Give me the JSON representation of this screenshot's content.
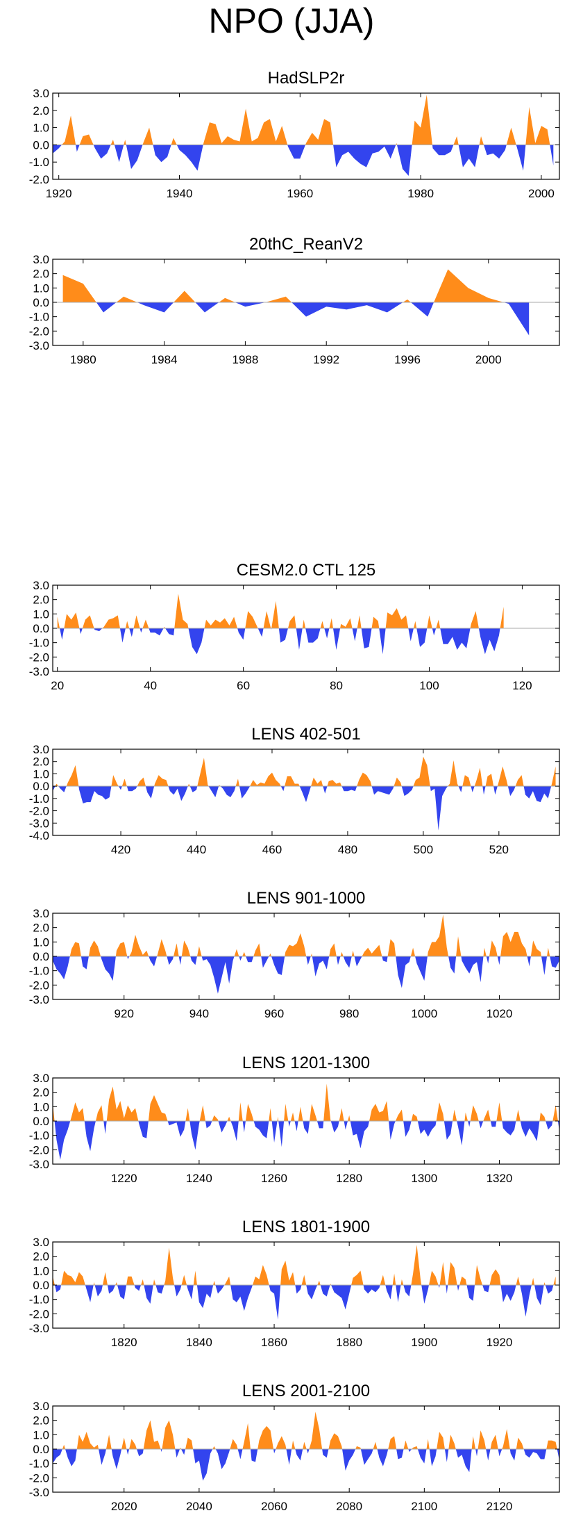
{
  "title": "NPO (JJA)",
  "colors": {
    "positive": "#ff8c1a",
    "negative": "#3344ee",
    "axis": "#000000",
    "zero_line": "#aaaaaa"
  },
  "chart_data": [
    {
      "type": "area",
      "title": "HadSLP2r",
      "xlim": [
        1919,
        2003
      ],
      "ylim": [
        -2.0,
        3.0
      ],
      "yticks": [
        "3.0",
        "2.0",
        "1.0",
        "0.0",
        "-1.0",
        "-2.0"
      ],
      "xticks": [
        1920,
        1940,
        1960,
        1980,
        2000
      ],
      "x": [
        1919,
        1920,
        1921,
        1922,
        1923,
        1924,
        1925,
        1926,
        1927,
        1928,
        1929,
        1930,
        1931,
        1932,
        1933,
        1934,
        1935,
        1936,
        1937,
        1938,
        1939,
        1940,
        1941,
        1942,
        1943,
        1944,
        1945,
        1946,
        1947,
        1948,
        1949,
        1950,
        1951,
        1952,
        1953,
        1954,
        1955,
        1956,
        1957,
        1958,
        1959,
        1960,
        1961,
        1962,
        1963,
        1964,
        1965,
        1966,
        1967,
        1968,
        1969,
        1970,
        1971,
        1972,
        1973,
        1974,
        1975,
        1976,
        1977,
        1978,
        1979,
        1980,
        1981,
        1982,
        1983,
        1984,
        1985,
        1986,
        1987,
        1988,
        1989,
        1990,
        1991,
        1992,
        1993,
        1994,
        1995,
        1996,
        1997,
        1998,
        1999,
        2000,
        2001,
        2002
      ],
      "values": [
        -0.5,
        -0.2,
        0.2,
        1.7,
        -0.4,
        0.5,
        0.6,
        -0.2,
        -0.8,
        -0.5,
        0.3,
        -1.0,
        0.3,
        -1.4,
        -0.9,
        0.1,
        1.0,
        -0.6,
        -1.0,
        -0.7,
        0.4,
        -0.3,
        -0.6,
        -1.0,
        -1.5,
        0.1,
        1.3,
        1.2,
        0.1,
        0.5,
        0.3,
        0.2,
        2.1,
        0.2,
        0.4,
        1.3,
        1.5,
        0.2,
        1.1,
        -0.1,
        -0.8,
        -0.8,
        0.1,
        0.7,
        0.3,
        1.5,
        1.3,
        -1.3,
        -0.6,
        -0.4,
        -0.8,
        -1.1,
        -1.3,
        -0.5,
        -0.4,
        -0.1,
        -0.8,
        0.1,
        -1.4,
        -1.8,
        1.4,
        1.0,
        2.9,
        -0.2,
        -0.6,
        -0.6,
        -0.4,
        0.5,
        -1.3,
        -0.8,
        -1.3,
        0.5,
        -0.6,
        -0.5,
        -0.8,
        -0.3,
        1.0,
        -0.2,
        -1.5,
        2.2,
        0.1,
        1.1,
        0.9,
        -1.2
      ]
    },
    {
      "type": "area",
      "title": "20thC_ReanV2",
      "xlim": [
        1978.5,
        2003.5
      ],
      "ylim": [
        -3.0,
        3.0
      ],
      "yticks": [
        "3.0",
        "2.0",
        "1.0",
        "0.0",
        "-1.0",
        "-2.0",
        "-3.0"
      ],
      "xticks": [
        1980,
        1984,
        1988,
        1992,
        1996,
        2000
      ],
      "x": [
        1979,
        1980,
        1981,
        1982,
        1983,
        1984,
        1985,
        1986,
        1987,
        1988,
        1989,
        1990,
        1991,
        1992,
        1993,
        1994,
        1995,
        1996,
        1997,
        1998,
        1999,
        2000,
        2001,
        2002
      ],
      "values": [
        1.9,
        1.3,
        -0.7,
        0.4,
        -0.2,
        -0.7,
        0.8,
        -0.7,
        0.3,
        -0.3,
        0.0,
        0.4,
        -1.0,
        -0.3,
        -0.5,
        -0.2,
        -0.7,
        0.2,
        -1.0,
        2.3,
        1.0,
        0.3,
        -0.1,
        -2.3
      ]
    },
    {
      "type": "area",
      "title": "CESM2.0 CTL 125",
      "xlim": [
        19,
        128
      ],
      "ylim": [
        -3.0,
        3.0
      ],
      "yticks": [
        "3.0",
        "2.0",
        "1.0",
        "0.0",
        "-1.0",
        "-2.0",
        "-3.0"
      ],
      "xticks": [
        20,
        40,
        60,
        80,
        100,
        120
      ],
      "x0": 20,
      "dx": 1,
      "values": [
        0.8,
        -0.8,
        1.0,
        0.6,
        1.1,
        -0.4,
        0.6,
        0.9,
        -0.1,
        -0.2,
        0.1,
        0.6,
        0.7,
        0.9,
        -1.0,
        0.5,
        -0.6,
        0.9,
        -0.3,
        0.6,
        -0.3,
        -0.3,
        -0.5,
        0.1,
        -0.4,
        -0.5,
        2.4,
        0.6,
        0.3,
        -1.3,
        -1.8,
        -1.0,
        0.6,
        0.2,
        0.6,
        0.4,
        0.7,
        0.2,
        0.8,
        -0.3,
        -0.8,
        1.2,
        0.8,
        0.1,
        -0.6,
        1.2,
        -0.1,
        1.9,
        -1.0,
        -0.8,
        0.5,
        0.9,
        -1.5,
        0.6,
        -1.0,
        -1.0,
        -0.7,
        0.5,
        -0.7,
        0.7,
        -1.5,
        0.3,
        0.1,
        0.7,
        -0.9,
        0.9,
        -1.4,
        -1.3,
        0.8,
        0.5,
        -1.8,
        1.1,
        0.9,
        1.4,
        0.6,
        0.9,
        -0.9,
        0.5,
        -1.3,
        -1.0,
        0.9,
        -0.5,
        0.6,
        -1.1,
        -1.1,
        -0.6,
        -1.5,
        -1.0,
        -1.4,
        0.3,
        1.2,
        -0.6,
        -1.8,
        -0.8,
        -1.6,
        -0.5,
        1.5
      ]
    },
    {
      "type": "area",
      "title": "LENS 402-501",
      "xlim": [
        402,
        536
      ],
      "ylim": [
        -4.0,
        3.0
      ],
      "yticks": [
        "3.0",
        "2.0",
        "1.0",
        "0.0",
        "-1.0",
        "-2.0",
        "-3.0",
        "-4.0"
      ],
      "xticks": [
        420,
        440,
        460,
        480,
        500,
        520
      ],
      "x0": 402,
      "dx": 1,
      "values": [
        -0.4,
        0.2,
        -0.2,
        -0.5,
        0.3,
        0.9,
        1.7,
        -0.3,
        -1.4,
        -1.3,
        -1.3,
        -0.4,
        -0.7,
        -0.8,
        -1.1,
        -0.9,
        0.9,
        0.2,
        -0.3,
        0.6,
        -0.4,
        -0.4,
        -0.2,
        0.4,
        0.7,
        -0.5,
        -1.0,
        0.2,
        0.9,
        0.6,
        0.5,
        -0.4,
        -0.7,
        -0.2,
        -1.2,
        -0.6,
        0.2,
        -0.5,
        -0.3,
        1.0,
        2.3,
        0.1,
        -0.4,
        -0.9,
        0.1,
        -0.2,
        -0.7,
        -0.9,
        -0.4,
        0.6,
        -1.0,
        -0.6,
        -0.1,
        0.5,
        0.1,
        0.3,
        0.2,
        0.8,
        1.1,
        0.5,
        0.2,
        -0.4,
        0.8,
        0.8,
        0.2,
        0.2,
        -0.5,
        -1.3,
        -0.3,
        0.7,
        0.2,
        0.5,
        -0.6,
        0.4,
        0.5,
        0.2,
        0.3,
        -0.4,
        -0.4,
        -0.3,
        -0.4,
        0.5,
        1.1,
        0.9,
        0.4,
        -0.7,
        -0.4,
        -0.5,
        -0.6,
        -0.7,
        -0.2,
        0.7,
        0.3,
        -0.8,
        -0.6,
        -0.3,
        0.5,
        0.7,
        2.4,
        1.7,
        -0.4,
        -0.2,
        -3.6,
        -0.8,
        -0.2,
        0.2,
        2.1,
        0.2,
        -0.5,
        0.9,
        0.7,
        -0.5,
        0.4,
        1.5,
        -0.7,
        0.8,
        1.0,
        -0.7,
        0.4,
        1.6,
        0.5,
        -0.8,
        -0.3,
        0.5,
        0.9,
        -0.7,
        -1.0,
        -0.4,
        -1.2,
        -1.3,
        -0.6,
        -1.0,
        0.2,
        1.6
      ]
    },
    {
      "type": "area",
      "title": "LENS 901-1000",
      "xlim": [
        901,
        1036
      ],
      "ylim": [
        -3.0,
        3.0
      ],
      "yticks": [
        "3.0",
        "2.0",
        "1.0",
        "0.0",
        "-1.0",
        "-2.0",
        "-3.0"
      ],
      "xticks": [
        920,
        940,
        960,
        980,
        1000,
        1020
      ],
      "x0": 901,
      "dx": 1,
      "values": [
        -0.3,
        -0.9,
        -1.2,
        -1.6,
        -0.7,
        0.5,
        1.0,
        0.9,
        -0.7,
        -0.9,
        0.6,
        1.1,
        0.7,
        -0.2,
        -0.9,
        -1.2,
        -1.7,
        0.4,
        0.9,
        1.0,
        -0.2,
        0.3,
        1.5,
        0.7,
        0.1,
        0.4,
        -0.3,
        -0.7,
        0.2,
        1.2,
        0.4,
        -0.6,
        -0.2,
        0.9,
        -0.6,
        1.1,
        0.6,
        -0.3,
        -0.6,
        0.7,
        -0.3,
        -0.2,
        -0.6,
        -1.5,
        -2.6,
        -1.5,
        -0.4,
        -1.9,
        -0.3,
        0.5,
        -0.3,
        0.3,
        -0.4,
        -0.4,
        0.4,
        0.9,
        -0.8,
        -0.3,
        0.2,
        -0.6,
        -1.2,
        -1.3,
        0.3,
        0.8,
        0.7,
        0.9,
        1.6,
        0.7,
        -0.6,
        0.2,
        -1.4,
        -0.5,
        -0.3,
        -0.9,
        0.5,
        0.9,
        -0.6,
        0.3,
        -0.4,
        -0.8,
        0.4,
        -0.7,
        -0.2,
        0.3,
        0.6,
        0.2,
        0.5,
        0.8,
        -0.3,
        -0.4,
        1.2,
        0.9,
        -1.3,
        -2.2,
        -0.6,
        -0.4,
        0.6,
        -0.5,
        -1.1,
        -1.7,
        0.3,
        1.0,
        1.0,
        1.4,
        2.9,
        0.6,
        -0.8,
        -1.2,
        1.4,
        -0.3,
        -0.8,
        -1.2,
        -0.6,
        -0.4,
        -1.8,
        0.6,
        -0.5,
        1.1,
        0.6,
        -0.6,
        1.4,
        1.7,
        1.0,
        1.7,
        1.7,
        0.9,
        0.5,
        -0.7,
        1.1,
        0.5,
        0.3,
        -1.3,
        0.6,
        -0.7,
        -0.8,
        -0.3
      ]
    },
    {
      "type": "area",
      "title": "LENS 1201-1300",
      "xlim": [
        1201,
        1336
      ],
      "ylim": [
        -3.0,
        3.0
      ],
      "yticks": [
        "3.0",
        "2.0",
        "1.0",
        "0.0",
        "-1.0",
        "-2.0",
        "-3.0"
      ],
      "xticks": [
        1220,
        1240,
        1260,
        1280,
        1300,
        1320
      ],
      "x0": 1201,
      "dx": 1,
      "values": [
        1.2,
        -1.3,
        -2.7,
        -1.3,
        -0.6,
        0.3,
        1.3,
        0.6,
        0.9,
        -1.1,
        -2.1,
        -0.5,
        0.6,
        1.1,
        -0.9,
        1.5,
        2.4,
        0.8,
        1.4,
        0.2,
        1.1,
        0.6,
        0.9,
        -0.2,
        -1.1,
        -1.2,
        1.2,
        1.8,
        1.2,
        0.6,
        0.5,
        -0.3,
        -0.2,
        -0.1,
        -1.1,
        -0.6,
        0.9,
        -0.9,
        -2.0,
        -0.2,
        1.1,
        -0.5,
        -0.3,
        0.4,
        0.1,
        -0.8,
        -0.3,
        0.3,
        -0.4,
        -1.4,
        1.3,
        -0.8,
        1.2,
        0.5,
        -0.4,
        -0.6,
        -1.0,
        -1.2,
        0.9,
        -1.5,
        0.3,
        -1.8,
        1.2,
        -0.4,
        0.6,
        -0.7,
        1.0,
        -0.5,
        -0.9,
        1.2,
        0.4,
        -0.5,
        -0.5,
        2.6,
        0.1,
        -0.8,
        -0.4,
        0.9,
        -0.6,
        0.4,
        -1.0,
        -0.9,
        -1.9,
        -0.7,
        -0.4,
        0.8,
        1.2,
        0.6,
        0.7,
        1.4,
        -1.3,
        -0.2,
        0.4,
        0.8,
        -1.1,
        -0.6,
        0.5,
        0.3,
        -0.9,
        -0.6,
        -1.1,
        -0.6,
        -0.3,
        1.3,
        0.5,
        -1.3,
        -0.9,
        0.8,
        -0.4,
        -1.7,
        0.6,
        -0.4,
        1.1,
        0.5,
        -0.5,
        0.2,
        0.8,
        -0.4,
        -0.4,
        1.3,
        -0.5,
        -0.8,
        -1.0,
        -0.6,
        0.8,
        -0.5,
        -1.1,
        -0.5,
        -0.9,
        -1.4,
        0.6,
        0.3,
        -0.6,
        -0.3,
        1.1,
        -0.7
      ]
    },
    {
      "type": "area",
      "title": "LENS 1801-1900",
      "xlim": [
        1801,
        1936
      ],
      "ylim": [
        -3.0,
        3.0
      ],
      "yticks": [
        "3.0",
        "2.0",
        "1.0",
        "0.0",
        "-1.0",
        "-2.0",
        "-3.0"
      ],
      "xticks": [
        1820,
        1840,
        1860,
        1880,
        1900,
        1920
      ],
      "x0": 1801,
      "dx": 1,
      "values": [
        0.6,
        -0.5,
        -0.3,
        1.0,
        0.7,
        0.6,
        0.2,
        0.9,
        0.6,
        -0.3,
        -1.2,
        0.2,
        -0.8,
        -0.4,
        0.9,
        -0.6,
        -0.4,
        0.2,
        -0.8,
        -1.0,
        0.6,
        0.6,
        -0.2,
        -0.4,
        0.4,
        -0.9,
        -1.3,
        0.4,
        -0.5,
        -0.6,
        0.3,
        2.6,
        0.5,
        -0.8,
        -0.3,
        0.7,
        -0.3,
        -1.0,
        1.0,
        -1.2,
        -1.6,
        -0.6,
        -0.9,
        0.3,
        -0.6,
        -0.3,
        0.1,
        0.6,
        -1.0,
        -1.2,
        -0.8,
        -1.8,
        -0.9,
        -0.2,
        0.6,
        0.4,
        1.4,
        0.7,
        -0.4,
        -0.6,
        -2.4,
        1.1,
        1.7,
        0.3,
        0.9,
        -0.6,
        -0.3,
        0.7,
        -0.6,
        -1.0,
        -0.3,
        0.3,
        -0.6,
        -0.8,
        0.1,
        -0.5,
        -0.7,
        -0.9,
        -1.7,
        -0.6,
        0.5,
        0.7,
        1.0,
        -0.3,
        -0.6,
        -0.3,
        -0.5,
        -0.2,
        0.7,
        -0.4,
        -1.0,
        0.8,
        -1.2,
        0.4,
        -0.5,
        -0.8,
        0.8,
        2.8,
        0.4,
        -1.3,
        -0.3,
        1.0,
        0.6,
        -0.2,
        1.6,
        -0.6,
        1.6,
        1.2,
        -0.4,
        0.6,
        0.4,
        -0.9,
        -1.1,
        1.4,
        0.4,
        -0.4,
        -0.5,
        0.7,
        1.1,
        0.7,
        -1.2,
        -0.6,
        -1.1,
        -0.5,
        0.6,
        -0.6,
        -2.2,
        -0.7,
        0.5,
        -0.9,
        -1.4,
        0.2,
        -0.6,
        -0.4,
        0.6
      ]
    },
    {
      "type": "area",
      "title": "LENS 2001-2100",
      "xlim": [
        2001,
        2136
      ],
      "ylim": [
        -3.0,
        3.0
      ],
      "yticks": [
        "3.0",
        "2.0",
        "1.0",
        "0.0",
        "-1.0",
        "-2.0",
        "-3.0"
      ],
      "xticks": [
        2020,
        2040,
        2060,
        2080,
        2100,
        2120
      ],
      "x0": 2001,
      "dx": 1,
      "values": [
        -1.0,
        -0.6,
        -0.4,
        0.3,
        -0.6,
        -1.2,
        -0.8,
        1.0,
        0.5,
        1.2,
        0.4,
        0.1,
        0.3,
        -1.1,
        -0.3,
        1.0,
        -0.5,
        -1.4,
        -0.4,
        0.8,
        -0.4,
        0.7,
        0.3,
        -0.5,
        -0.3,
        1.3,
        2.0,
        0.5,
        0.6,
        -0.2,
        1.5,
        2.0,
        1.0,
        -0.6,
        0.1,
        -0.4,
        0.8,
        0.6,
        -1.0,
        -0.8,
        -2.2,
        -1.7,
        -0.3,
        0.2,
        -0.3,
        -1.4,
        -1.0,
        -0.2,
        0.7,
        0.3,
        -0.7,
        0.5,
        1.8,
        -0.8,
        -0.9,
        0.6,
        1.3,
        1.6,
        1.3,
        -0.3,
        0.4,
        0.9,
        0.3,
        -1.1,
        0.6,
        -0.4,
        -0.8,
        0.5,
        -0.3,
        0.6,
        2.6,
        1.4,
        -0.4,
        -0.6,
        0.6,
        1.1,
        0.9,
        0.2,
        -1.5,
        -0.8,
        -0.4,
        0.2,
        0.1,
        -1.1,
        -0.7,
        -0.3,
        0.5,
        -0.6,
        -1.2,
        -0.4,
        0.7,
        0.9,
        -0.7,
        -0.6,
        0.6,
        -0.2,
        0.1,
        0.2,
        -0.6,
        -1.0,
        0.7,
        -1.2,
        -0.5,
        1.2,
        0.8,
        -0.9,
        1.0,
        0.4,
        -0.6,
        -0.4,
        -1.2,
        -1.6,
        0.9,
        -0.5,
        1.3,
        0.6,
        -0.8,
        0.5,
        1.0,
        -0.5,
        0.2,
        1.4,
        -0.3,
        -0.8,
        0.8,
        0.4,
        -0.4,
        -0.6,
        -0.2,
        -0.3,
        -0.7,
        -0.7,
        0.6,
        0.6,
        0.5,
        -0.8
      ]
    }
  ]
}
